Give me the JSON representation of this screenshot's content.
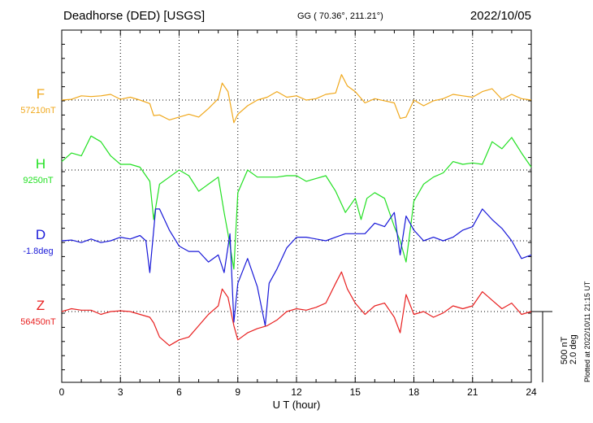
{
  "header": {
    "title": "Deadhorse (DED)  [USGS]",
    "coords": "GG ( 70.36°, 211.21°)",
    "date": "2022/10/05"
  },
  "footer": {
    "plotted": "Plotted at 2022/10/11 21:15 UT"
  },
  "scale": {
    "line1": "500 nT",
    "line2": "2.0 deg"
  },
  "chart_data": {
    "type": "line",
    "xlabel": "U T (hour)",
    "xlim": [
      0,
      24
    ],
    "xticks": [
      "0",
      "3",
      "6",
      "9",
      "12",
      "15",
      "18",
      "21",
      "24"
    ],
    "grid": true,
    "scale_bar": {
      "nT": 500,
      "deg": 2.0
    },
    "series": [
      {
        "name": "F",
        "baseline_label": "57210nT",
        "color": "#f0a81c",
        "x": [
          0,
          0.5,
          1,
          1.5,
          2,
          2.5,
          3,
          3.5,
          4,
          4.5,
          4.7,
          5,
          5.5,
          6,
          6.5,
          7,
          7.5,
          8,
          8.2,
          8.5,
          8.8,
          9,
          9.5,
          10,
          10.5,
          11,
          11.5,
          12,
          12.5,
          13,
          13.5,
          14,
          14.3,
          14.6,
          15,
          15.5,
          16,
          16.5,
          17,
          17.3,
          17.6,
          18,
          18.5,
          19,
          19.5,
          20,
          20.5,
          21,
          21.5,
          22,
          22.5,
          23,
          23.5,
          24
        ],
        "y": [
          0,
          5,
          30,
          25,
          30,
          40,
          5,
          20,
          0,
          -25,
          -110,
          -105,
          -140,
          -120,
          -100,
          -120,
          -60,
          10,
          120,
          60,
          -160,
          -100,
          -40,
          0,
          20,
          60,
          20,
          30,
          0,
          10,
          40,
          50,
          180,
          100,
          60,
          -20,
          10,
          -5,
          -20,
          -130,
          -120,
          0,
          -40,
          -5,
          10,
          40,
          30,
          20,
          60,
          80,
          5,
          40,
          10,
          0
        ]
      },
      {
        "name": "H",
        "baseline_label": "9250nT",
        "color": "#22e022",
        "x": [
          0,
          0.5,
          1,
          1.5,
          2,
          2.5,
          3,
          3.5,
          4,
          4.5,
          4.7,
          5,
          5.5,
          6,
          6.5,
          7,
          7.5,
          8,
          8.3,
          8.5,
          8.8,
          9,
          9.5,
          10,
          10.5,
          11,
          11.5,
          12,
          12.5,
          13,
          13.5,
          14,
          14.5,
          15,
          15.3,
          15.6,
          16,
          16.5,
          17,
          17.3,
          17.6,
          18,
          18.5,
          19,
          19.5,
          20,
          20.5,
          21,
          21.5,
          22,
          22.5,
          23,
          23.5,
          24
        ],
        "y": [
          60,
          120,
          100,
          240,
          200,
          100,
          40,
          40,
          20,
          -80,
          -350,
          -100,
          -50,
          0,
          -40,
          -150,
          -100,
          -50,
          -300,
          -450,
          -700,
          -160,
          0,
          -50,
          -50,
          -50,
          -40,
          -40,
          -80,
          -60,
          -40,
          -150,
          -300,
          -200,
          -350,
          -200,
          -160,
          -200,
          -400,
          -500,
          -650,
          -220,
          -100,
          -50,
          -20,
          60,
          40,
          50,
          40,
          200,
          150,
          230,
          120,
          20
        ]
      },
      {
        "name": "D",
        "baseline_label": "-1.8deg",
        "color": "#1818d8",
        "x": [
          0,
          0.5,
          1,
          1.5,
          2,
          2.5,
          3,
          3.5,
          4,
          4.3,
          4.5,
          4.8,
          5,
          5.5,
          6,
          6.5,
          7,
          7.5,
          8,
          8.3,
          8.6,
          8.8,
          9,
          9.5,
          10,
          10.4,
          10.6,
          11,
          11.5,
          12,
          12.5,
          13,
          13.5,
          14,
          14.5,
          15,
          15.5,
          16,
          16.5,
          17,
          17.3,
          17.6,
          18,
          18.5,
          19,
          19.5,
          20,
          20.5,
          21,
          21.5,
          22,
          22.5,
          23,
          23.5,
          24
        ],
        "y": [
          0,
          0.02,
          -0.05,
          0.05,
          -0.05,
          0,
          0.1,
          0.05,
          0.15,
          0,
          -0.9,
          0.9,
          0.9,
          0.3,
          -0.15,
          -0.3,
          -0.3,
          -0.6,
          -0.4,
          -0.9,
          0.2,
          -2.3,
          -1.2,
          -0.5,
          -1.3,
          -2.4,
          -1.2,
          -0.8,
          -0.2,
          0.1,
          0.1,
          0.05,
          0,
          0.1,
          0.2,
          0.2,
          0.2,
          0.5,
          0.4,
          0.8,
          -0.4,
          0.7,
          0.3,
          0,
          0.1,
          0,
          0.1,
          0.3,
          0.4,
          0.9,
          0.6,
          0.35,
          0,
          -0.5,
          -0.4
        ]
      },
      {
        "name": "Z",
        "baseline_label": "56450nT",
        "color": "#e82020",
        "x": [
          0,
          0.5,
          1,
          1.5,
          2,
          2.5,
          3,
          3.5,
          4,
          4.5,
          4.7,
          5,
          5.5,
          6,
          6.5,
          7,
          7.5,
          8,
          8.2,
          8.5,
          8.8,
          9,
          9.5,
          10,
          10.5,
          11,
          11.5,
          12,
          12.5,
          13,
          13.5,
          14,
          14.3,
          14.6,
          15,
          15.5,
          16,
          16.5,
          17,
          17.3,
          17.6,
          18,
          18.5,
          19,
          19.5,
          20,
          20.5,
          21,
          21.5,
          22,
          22.5,
          23,
          23.5,
          24
        ],
        "y": [
          0,
          20,
          10,
          10,
          -20,
          0,
          5,
          0,
          -20,
          -40,
          -80,
          -180,
          -240,
          -200,
          -180,
          -100,
          -20,
          40,
          160,
          100,
          -100,
          -200,
          -150,
          -120,
          -100,
          -60,
          0,
          20,
          10,
          30,
          60,
          200,
          280,
          160,
          60,
          -20,
          40,
          60,
          -40,
          -150,
          120,
          -20,
          0,
          -40,
          -10,
          40,
          20,
          40,
          140,
          80,
          20,
          60,
          -20,
          0
        ]
      }
    ]
  }
}
